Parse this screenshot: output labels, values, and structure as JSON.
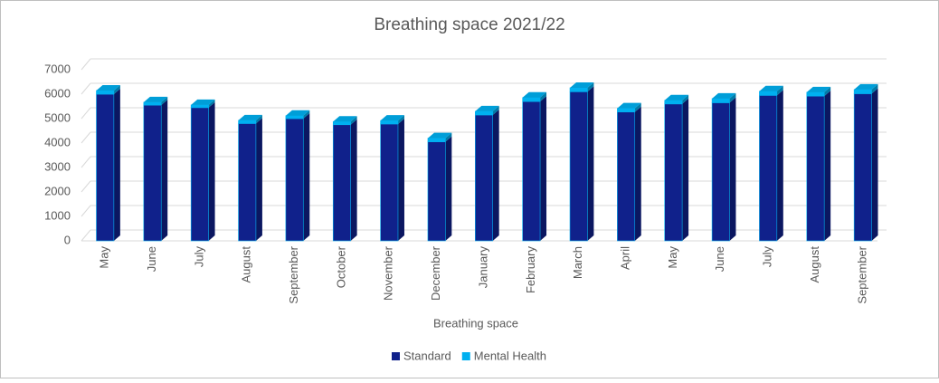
{
  "chart_data": {
    "type": "bar3d_stacked",
    "title": "Breathing space 2021/22",
    "x_label": "Breathing space",
    "categories": [
      "May",
      "June",
      "July",
      "August",
      "September",
      "October",
      "November",
      "December",
      "January",
      "February",
      "March",
      "April",
      "May",
      "June",
      "July",
      "August",
      "September"
    ],
    "series": [
      {
        "name": "Standard",
        "color": "#10218b",
        "values": [
          6000,
          5550,
          5450,
          4800,
          5000,
          4750,
          4780,
          4050,
          5150,
          5700,
          6100,
          5270,
          5600,
          5650,
          5950,
          5920,
          6020
        ]
      },
      {
        "name": "Mental Health",
        "color": "#00b0f0",
        "values": [
          150,
          120,
          110,
          130,
          120,
          130,
          140,
          150,
          150,
          160,
          160,
          150,
          150,
          170,
          170,
          160,
          170
        ]
      }
    ],
    "ylim": [
      0,
      7000
    ],
    "yticks": [
      0,
      1000,
      2000,
      3000,
      4000,
      5000,
      6000,
      7000
    ],
    "grid": true,
    "legend": "bottom"
  }
}
